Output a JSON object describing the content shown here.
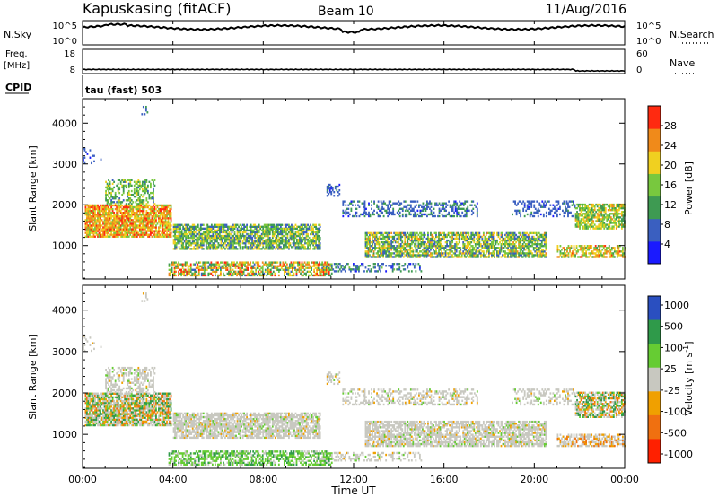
{
  "header": {
    "station": "Kapuskasing (fitACF)",
    "beam": "Beam 10",
    "date": "11/Aug/2016"
  },
  "top_panels": {
    "nsky_label": "N.Sky",
    "nsky_ticks": [
      "10^5",
      "10^0"
    ],
    "nsearch_label": "N.Search",
    "nsearch_ticks": [
      "10^5",
      "10^0"
    ],
    "freq_label_1": "Freq.",
    "freq_label_2": "[MHz]",
    "freq_ticks": [
      "18",
      "8"
    ],
    "nave_label": "Nave",
    "nave_ticks": [
      "60",
      "0"
    ],
    "cpid_label": "CPID",
    "cpid_value": "tau (fast) 503"
  },
  "chart_data": [
    {
      "type": "heatmap",
      "name": "power",
      "xlabel": "Time UT",
      "ylabel": "Slant Range [km]",
      "x_ticks": [
        "00:00",
        "04:00",
        "08:00",
        "12:00",
        "16:00",
        "20:00",
        "00:00"
      ],
      "x_range_hours": [
        0,
        24
      ],
      "y_ticks": [
        1000,
        2000,
        3000,
        4000
      ],
      "y_range_km": [
        180,
        4600
      ],
      "colorbar_label": "Power [dB]",
      "colorbar_ticks": [
        "4",
        "8",
        "12",
        "16",
        "20",
        "24",
        "28"
      ],
      "colorbar_range": [
        0,
        32
      ],
      "colorscale": [
        "#1a1aff",
        "#3a5fc0",
        "#3e9a52",
        "#78c83e",
        "#f0d020",
        "#f08a1a",
        "#ff2a10"
      ]
    },
    {
      "type": "heatmap",
      "name": "velocity",
      "xlabel": "Time UT",
      "ylabel": "Slant Range [km]",
      "x_ticks": [
        "00:00",
        "04:00",
        "08:00",
        "12:00",
        "16:00",
        "20:00",
        "00:00"
      ],
      "x_range_hours": [
        0,
        24
      ],
      "y_ticks": [
        1000,
        2000,
        3000,
        4000
      ],
      "y_range_km": [
        180,
        4600
      ],
      "colorbar_label": "Velocity [m s",
      "colorbar_label_sup": "-1",
      "colorbar_label_end": "]",
      "colorbar_ticks": [
        "1000",
        "500",
        "100",
        "25",
        "-25",
        "-100",
        "-500",
        "-1000"
      ],
      "colorscale": [
        "#2a4fc0",
        "#2f9a4a",
        "#66cc33",
        "#c8c8c0",
        "#f0a000",
        "#f07010",
        "#ff2000"
      ]
    }
  ]
}
